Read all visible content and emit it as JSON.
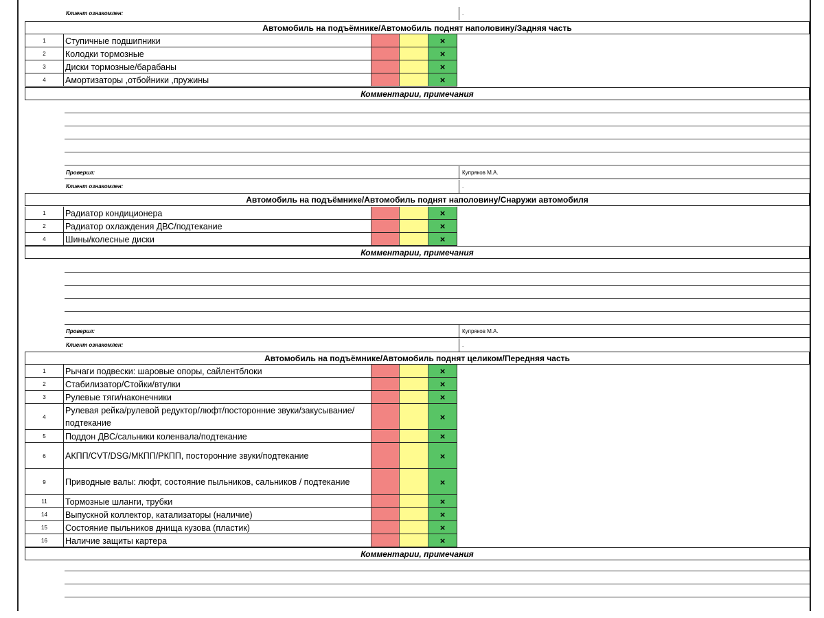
{
  "labels": {
    "checked_by": "Проверил:",
    "client_ack": "Клиент ознакомлен:",
    "inspector": "Купряков М.А.",
    "client_value": ".",
    "comments": "Комментарии, примечания",
    "mark": "×"
  },
  "sections": [
    {
      "title": "Автомобиль на подъёмнике/Автомобиль поднят наполовину/Задняя часть",
      "items": [
        {
          "num": "1",
          "label": "Ступичные подшипники",
          "status": "green"
        },
        {
          "num": "2",
          "label": "Колодки тормозные",
          "status": "green"
        },
        {
          "num": "3",
          "label": "Диски тормозные/барабаны",
          "status": "green"
        },
        {
          "num": "4",
          "label": "Амортизаторы ,отбойники ,пружины",
          "status": "green"
        }
      ]
    },
    {
      "title": "Автомобиль на подъёмнике/Автомобиль поднят наполовину/Снаружи автомобиля",
      "items": [
        {
          "num": "1",
          "label": "Радиатор кондиционера",
          "status": "green"
        },
        {
          "num": "2",
          "label": "Радиатор охлаждения ДВС/подтекание",
          "status": "green"
        },
        {
          "num": "4",
          "label": "Шины/колесные диски",
          "status": "green"
        }
      ]
    },
    {
      "title": "Автомобиль на подъёмнике/Автомобиль поднят целиком/Передняя часть",
      "items": [
        {
          "num": "1",
          "label": "Рычаги подвески: шаровые опоры, сайлентблоки",
          "status": "green"
        },
        {
          "num": "2",
          "label": "Стабилизатор/Стойки/втулки",
          "status": "green"
        },
        {
          "num": "3",
          "label": "Рулевые тяги/наконечники",
          "status": "green"
        },
        {
          "num": "4",
          "label": "Рулевая рейка/рулевой редуктор/люфт/посторонние звуки/закусывание/подтекание",
          "status": "green"
        },
        {
          "num": "5",
          "label": "Поддон ДВС/сальники коленвала/подтекание",
          "status": "green"
        },
        {
          "num": "6",
          "label": "АКПП/CVT/DSG/МКПП/РКПП, посторонние звуки/подтекание",
          "status": "green"
        },
        {
          "num": "9",
          "label": "Приводные валы: люфт, состояние пыльников, сальников / подтекание",
          "status": "green"
        },
        {
          "num": "11",
          "label": "Тормозные шланги, трубки",
          "status": "green"
        },
        {
          "num": "14",
          "label": "Выпускной коллектор, катализаторы (наличие)",
          "status": "green"
        },
        {
          "num": "15",
          "label": "Состояние пыльников днища кузова (пластик)",
          "status": "green"
        },
        {
          "num": "16",
          "label": "Наличие защиты картера",
          "status": "green"
        }
      ]
    }
  ]
}
